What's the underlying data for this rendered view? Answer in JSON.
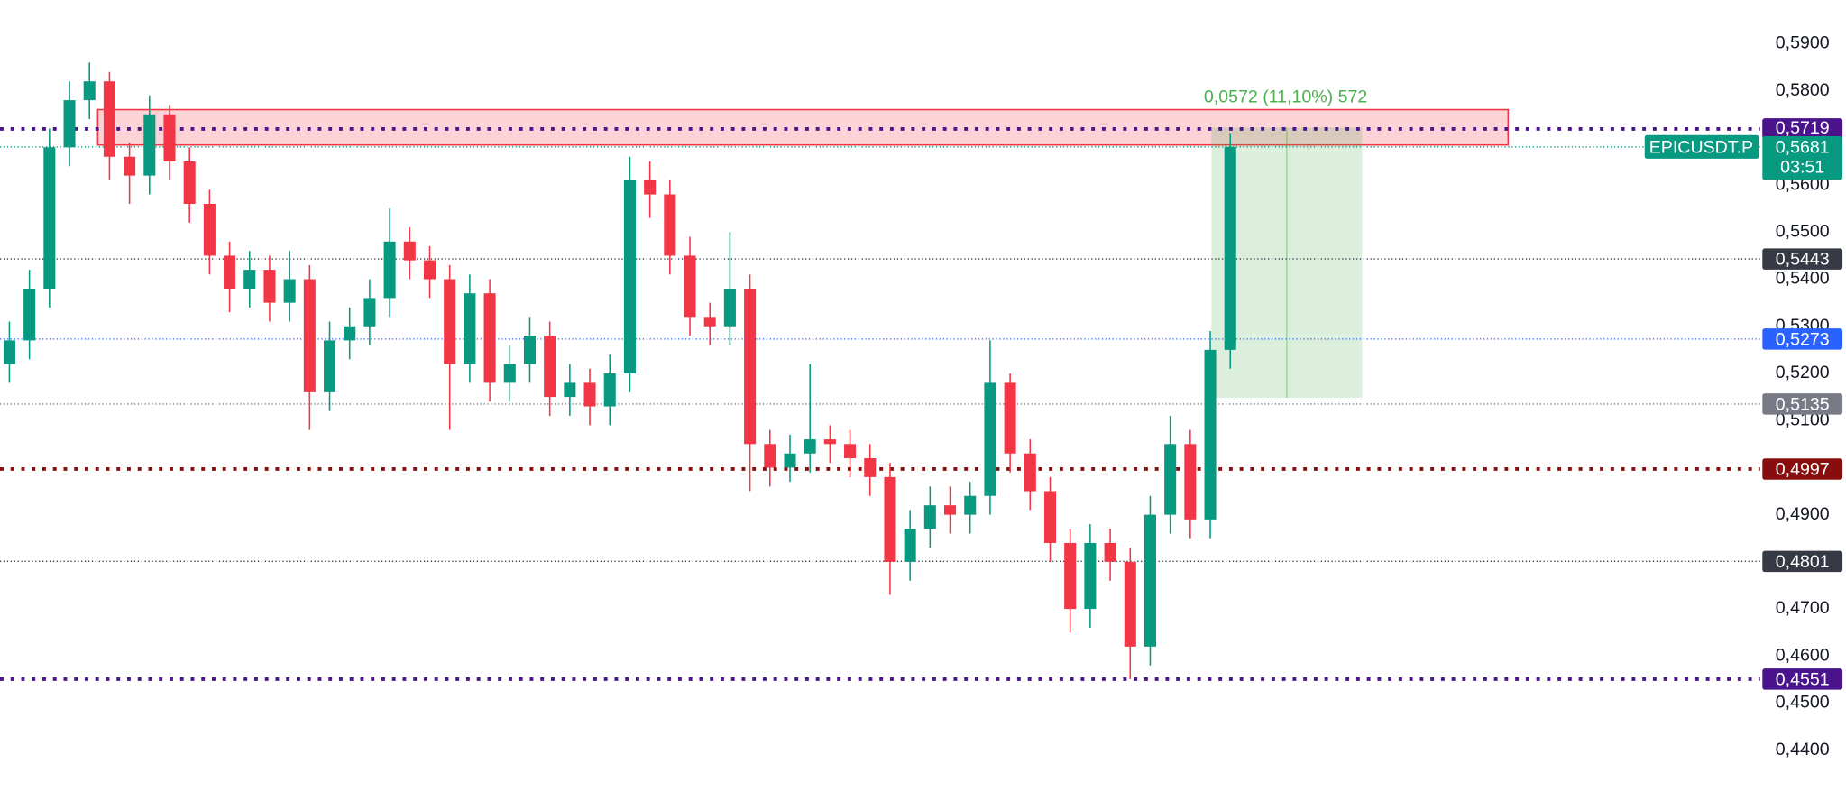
{
  "chart_data": {
    "type": "candlestick",
    "open": [
      0.522,
      0.527,
      0.538,
      0.568,
      0.578,
      0.582,
      0.566,
      0.562,
      0.575,
      0.565,
      0.556,
      0.545,
      0.538,
      0.542,
      0.535,
      0.54,
      0.516,
      0.527,
      0.53,
      0.536,
      0.548,
      0.544,
      0.54,
      0.522,
      0.537,
      0.518,
      0.522,
      0.528,
      0.515,
      0.518,
      0.513,
      0.52,
      0.561,
      0.558,
      0.545,
      0.532,
      0.53,
      0.538,
      0.505,
      0.5,
      0.503,
      0.506,
      0.505,
      0.502,
      0.498,
      0.48,
      0.487,
      0.492,
      0.49,
      0.494,
      0.518,
      0.503,
      0.495,
      0.484,
      0.47,
      0.484,
      0.48,
      0.462,
      0.49,
      0.505,
      0.489,
      0.525
    ],
    "high": [
      0.531,
      0.542,
      0.572,
      0.582,
      0.586,
      0.584,
      0.569,
      0.579,
      0.577,
      0.568,
      0.559,
      0.548,
      0.546,
      0.545,
      0.546,
      0.543,
      0.531,
      0.534,
      0.54,
      0.555,
      0.551,
      0.547,
      0.543,
      0.541,
      0.54,
      0.526,
      0.532,
      0.531,
      0.522,
      0.521,
      0.524,
      0.566,
      0.565,
      0.561,
      0.549,
      0.535,
      0.55,
      0.541,
      0.508,
      0.507,
      0.522,
      0.509,
      0.508,
      0.505,
      0.501,
      0.491,
      0.496,
      0.496,
      0.497,
      0.527,
      0.52,
      0.506,
      0.498,
      0.487,
      0.488,
      0.487,
      0.483,
      0.494,
      0.511,
      0.508,
      0.529,
      0.571
    ],
    "low": [
      0.518,
      0.523,
      0.534,
      0.564,
      0.574,
      0.561,
      0.556,
      0.558,
      0.561,
      0.552,
      0.541,
      0.533,
      0.534,
      0.531,
      0.531,
      0.508,
      0.512,
      0.523,
      0.526,
      0.532,
      0.54,
      0.536,
      0.508,
      0.518,
      0.514,
      0.514,
      0.518,
      0.511,
      0.511,
      0.509,
      0.509,
      0.516,
      0.553,
      0.541,
      0.528,
      0.526,
      0.526,
      0.495,
      0.496,
      0.497,
      0.499,
      0.501,
      0.498,
      0.494,
      0.473,
      0.476,
      0.483,
      0.486,
      0.486,
      0.49,
      0.499,
      0.491,
      0.48,
      0.465,
      0.466,
      0.476,
      0.4551,
      0.458,
      0.486,
      0.485,
      0.485,
      0.521
    ],
    "close": [
      0.527,
      0.538,
      0.568,
      0.578,
      0.582,
      0.566,
      0.562,
      0.575,
      0.565,
      0.556,
      0.545,
      0.538,
      0.542,
      0.535,
      0.54,
      0.516,
      0.527,
      0.53,
      0.536,
      0.548,
      0.544,
      0.54,
      0.522,
      0.537,
      0.518,
      0.522,
      0.528,
      0.515,
      0.518,
      0.513,
      0.52,
      0.561,
      0.558,
      0.545,
      0.532,
      0.53,
      0.538,
      0.505,
      0.5,
      0.503,
      0.506,
      0.505,
      0.502,
      0.498,
      0.48,
      0.487,
      0.492,
      0.49,
      0.494,
      0.518,
      0.503,
      0.495,
      0.484,
      0.47,
      0.484,
      0.48,
      0.462,
      0.49,
      0.505,
      0.489,
      0.525,
      0.5681
    ],
    "up_color": "#089981",
    "down_color": "#f23645",
    "ylim": [
      0.43025,
      0.59925
    ],
    "yticks": [
      {
        "value": 0.59,
        "label": "0,5900"
      },
      {
        "value": 0.58,
        "label": "0,5800"
      },
      {
        "value": 0.57,
        "label": "0,5700"
      },
      {
        "value": 0.56,
        "label": "0,5600"
      },
      {
        "value": 0.55,
        "label": "0,5500"
      },
      {
        "value": 0.54,
        "label": "0,5400"
      },
      {
        "value": 0.53,
        "label": "0,5300"
      },
      {
        "value": 0.52,
        "label": "0,5200"
      },
      {
        "value": 0.51,
        "label": "0,5100"
      },
      {
        "value": 0.5,
        "label": "0,5000"
      },
      {
        "value": 0.49,
        "label": "0,4900"
      },
      {
        "value": 0.48,
        "label": "0,4800"
      },
      {
        "value": 0.47,
        "label": "0,4700"
      },
      {
        "value": 0.46,
        "label": "0,4600"
      },
      {
        "value": 0.45,
        "label": "0,4500"
      },
      {
        "value": 0.44,
        "label": "0,4400"
      }
    ],
    "levels": [
      {
        "value": 0.5719,
        "label": "0,5719",
        "color": "#4a148c",
        "thick": true
      },
      {
        "value": 0.5443,
        "label": "0,5443",
        "color": "#363a45",
        "thick": false
      },
      {
        "value": 0.5273,
        "label": "0,5273",
        "color": "#2962ff",
        "thick": false
      },
      {
        "value": 0.5135,
        "label": "0,5135",
        "color": "#787b86",
        "thick": false
      },
      {
        "value": 0.4997,
        "label": "0,4997",
        "color": "#880e0e",
        "thick": true
      },
      {
        "value": 0.4801,
        "label": "0,4801",
        "color": "#363a45",
        "thick": false
      },
      {
        "value": 0.4551,
        "label": "0,4551",
        "color": "#4a148c",
        "thick": true
      }
    ],
    "current_price": {
      "value": 0.5681,
      "label": "0,5681",
      "symbol": "EPICUSDT.P",
      "countdown": "03:51",
      "color": "#089981"
    },
    "zone": {
      "top": 0.576,
      "bottom": 0.5685,
      "color": "#f23645"
    },
    "position": {
      "top": 0.5722,
      "bottom": 0.5148,
      "label": "0,0572 (11,10%) 572",
      "color": "#4caf50"
    }
  }
}
